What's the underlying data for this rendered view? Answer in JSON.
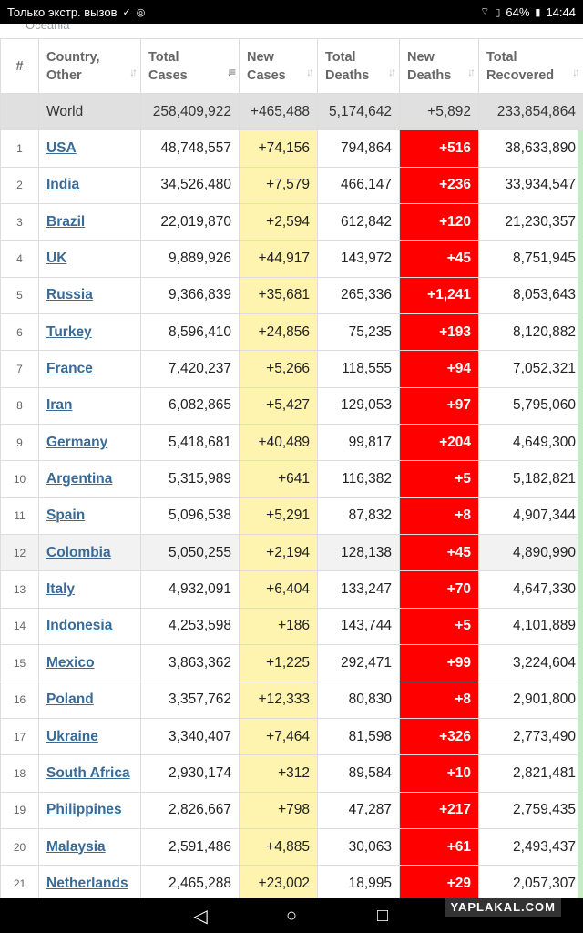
{
  "status_bar": {
    "carrier_text": "Только экстр. вызов",
    "battery": "64%",
    "time": "14:44"
  },
  "region_tab": "Oceania",
  "table": {
    "headers": {
      "index": "#",
      "country": "Country, Other",
      "total_cases": "Total Cases",
      "new_cases": "New Cases",
      "total_deaths": "Total Deaths",
      "new_deaths": "New Deaths",
      "total_recovered": "Total Recovered"
    },
    "world": {
      "country": "World",
      "total_cases": "258,409,922",
      "new_cases": "+465,488",
      "total_deaths": "5,174,642",
      "new_deaths": "+5,892",
      "total_recovered": "233,854,864"
    },
    "rows": [
      {
        "idx": "1",
        "country": "USA",
        "total_cases": "48,748,557",
        "new_cases": "+74,156",
        "total_deaths": "794,864",
        "new_deaths": "+516",
        "total_recovered": "38,633,890"
      },
      {
        "idx": "2",
        "country": "India",
        "total_cases": "34,526,480",
        "new_cases": "+7,579",
        "total_deaths": "466,147",
        "new_deaths": "+236",
        "total_recovered": "33,934,547"
      },
      {
        "idx": "3",
        "country": "Brazil",
        "total_cases": "22,019,870",
        "new_cases": "+2,594",
        "total_deaths": "612,842",
        "new_deaths": "+120",
        "total_recovered": "21,230,357"
      },
      {
        "idx": "4",
        "country": "UK",
        "total_cases": "9,889,926",
        "new_cases": "+44,917",
        "total_deaths": "143,972",
        "new_deaths": "+45",
        "total_recovered": "8,751,945"
      },
      {
        "idx": "5",
        "country": "Russia",
        "total_cases": "9,366,839",
        "new_cases": "+35,681",
        "total_deaths": "265,336",
        "new_deaths": "+1,241",
        "total_recovered": "8,053,643"
      },
      {
        "idx": "6",
        "country": "Turkey",
        "total_cases": "8,596,410",
        "new_cases": "+24,856",
        "total_deaths": "75,235",
        "new_deaths": "+193",
        "total_recovered": "8,120,882"
      },
      {
        "idx": "7",
        "country": "France",
        "total_cases": "7,420,237",
        "new_cases": "+5,266",
        "total_deaths": "118,555",
        "new_deaths": "+94",
        "total_recovered": "7,052,321"
      },
      {
        "idx": "8",
        "country": "Iran",
        "total_cases": "6,082,865",
        "new_cases": "+5,427",
        "total_deaths": "129,053",
        "new_deaths": "+97",
        "total_recovered": "5,795,060"
      },
      {
        "idx": "9",
        "country": "Germany",
        "total_cases": "5,418,681",
        "new_cases": "+40,489",
        "total_deaths": "99,817",
        "new_deaths": "+204",
        "total_recovered": "4,649,300"
      },
      {
        "idx": "10",
        "country": "Argentina",
        "total_cases": "5,315,989",
        "new_cases": "+641",
        "total_deaths": "116,382",
        "new_deaths": "+5",
        "total_recovered": "5,182,821"
      },
      {
        "idx": "11",
        "country": "Spain",
        "total_cases": "5,096,538",
        "new_cases": "+5,291",
        "total_deaths": "87,832",
        "new_deaths": "+8",
        "total_recovered": "4,907,344"
      },
      {
        "idx": "12",
        "country": "Colombia",
        "total_cases": "5,050,255",
        "new_cases": "+2,194",
        "total_deaths": "128,138",
        "new_deaths": "+45",
        "total_recovered": "4,890,990"
      },
      {
        "idx": "13",
        "country": "Italy",
        "total_cases": "4,932,091",
        "new_cases": "+6,404",
        "total_deaths": "133,247",
        "new_deaths": "+70",
        "total_recovered": "4,647,330"
      },
      {
        "idx": "14",
        "country": "Indonesia",
        "total_cases": "4,253,598",
        "new_cases": "+186",
        "total_deaths": "143,744",
        "new_deaths": "+5",
        "total_recovered": "4,101,889"
      },
      {
        "idx": "15",
        "country": "Mexico",
        "total_cases": "3,863,362",
        "new_cases": "+1,225",
        "total_deaths": "292,471",
        "new_deaths": "+99",
        "total_recovered": "3,224,604"
      },
      {
        "idx": "16",
        "country": "Poland",
        "total_cases": "3,357,762",
        "new_cases": "+12,333",
        "total_deaths": "80,830",
        "new_deaths": "+8",
        "total_recovered": "2,901,800"
      },
      {
        "idx": "17",
        "country": "Ukraine",
        "total_cases": "3,340,407",
        "new_cases": "+7,464",
        "total_deaths": "81,598",
        "new_deaths": "+326",
        "total_recovered": "2,773,490"
      },
      {
        "idx": "18",
        "country": "South Africa",
        "total_cases": "2,930,174",
        "new_cases": "+312",
        "total_deaths": "89,584",
        "new_deaths": "+10",
        "total_recovered": "2,821,481"
      },
      {
        "idx": "19",
        "country": "Philippines",
        "total_cases": "2,826,667",
        "new_cases": "+798",
        "total_deaths": "47,287",
        "new_deaths": "+217",
        "total_recovered": "2,759,435"
      },
      {
        "idx": "20",
        "country": "Malaysia",
        "total_cases": "2,591,486",
        "new_cases": "+4,885",
        "total_deaths": "30,063",
        "new_deaths": "+61",
        "total_recovered": "2,493,437"
      },
      {
        "idx": "21",
        "country": "Netherlands",
        "total_cases": "2,465,288",
        "new_cases": "+23,002",
        "total_deaths": "18,995",
        "new_deaths": "+29",
        "total_recovered": "2,057,307"
      }
    ],
    "highlighted_row_index": 11
  },
  "nav_bar": {
    "back_icon": "triangle-left-icon",
    "home_icon": "circle-icon",
    "recents_icon": "square-icon"
  },
  "watermark": "YAPLAKAL.COM",
  "colors": {
    "new_cases_bg": "#fff3b0",
    "new_deaths_bg": "#ff0000",
    "world_row_bg": "#e0e0e0",
    "link": "#3a6a96"
  }
}
